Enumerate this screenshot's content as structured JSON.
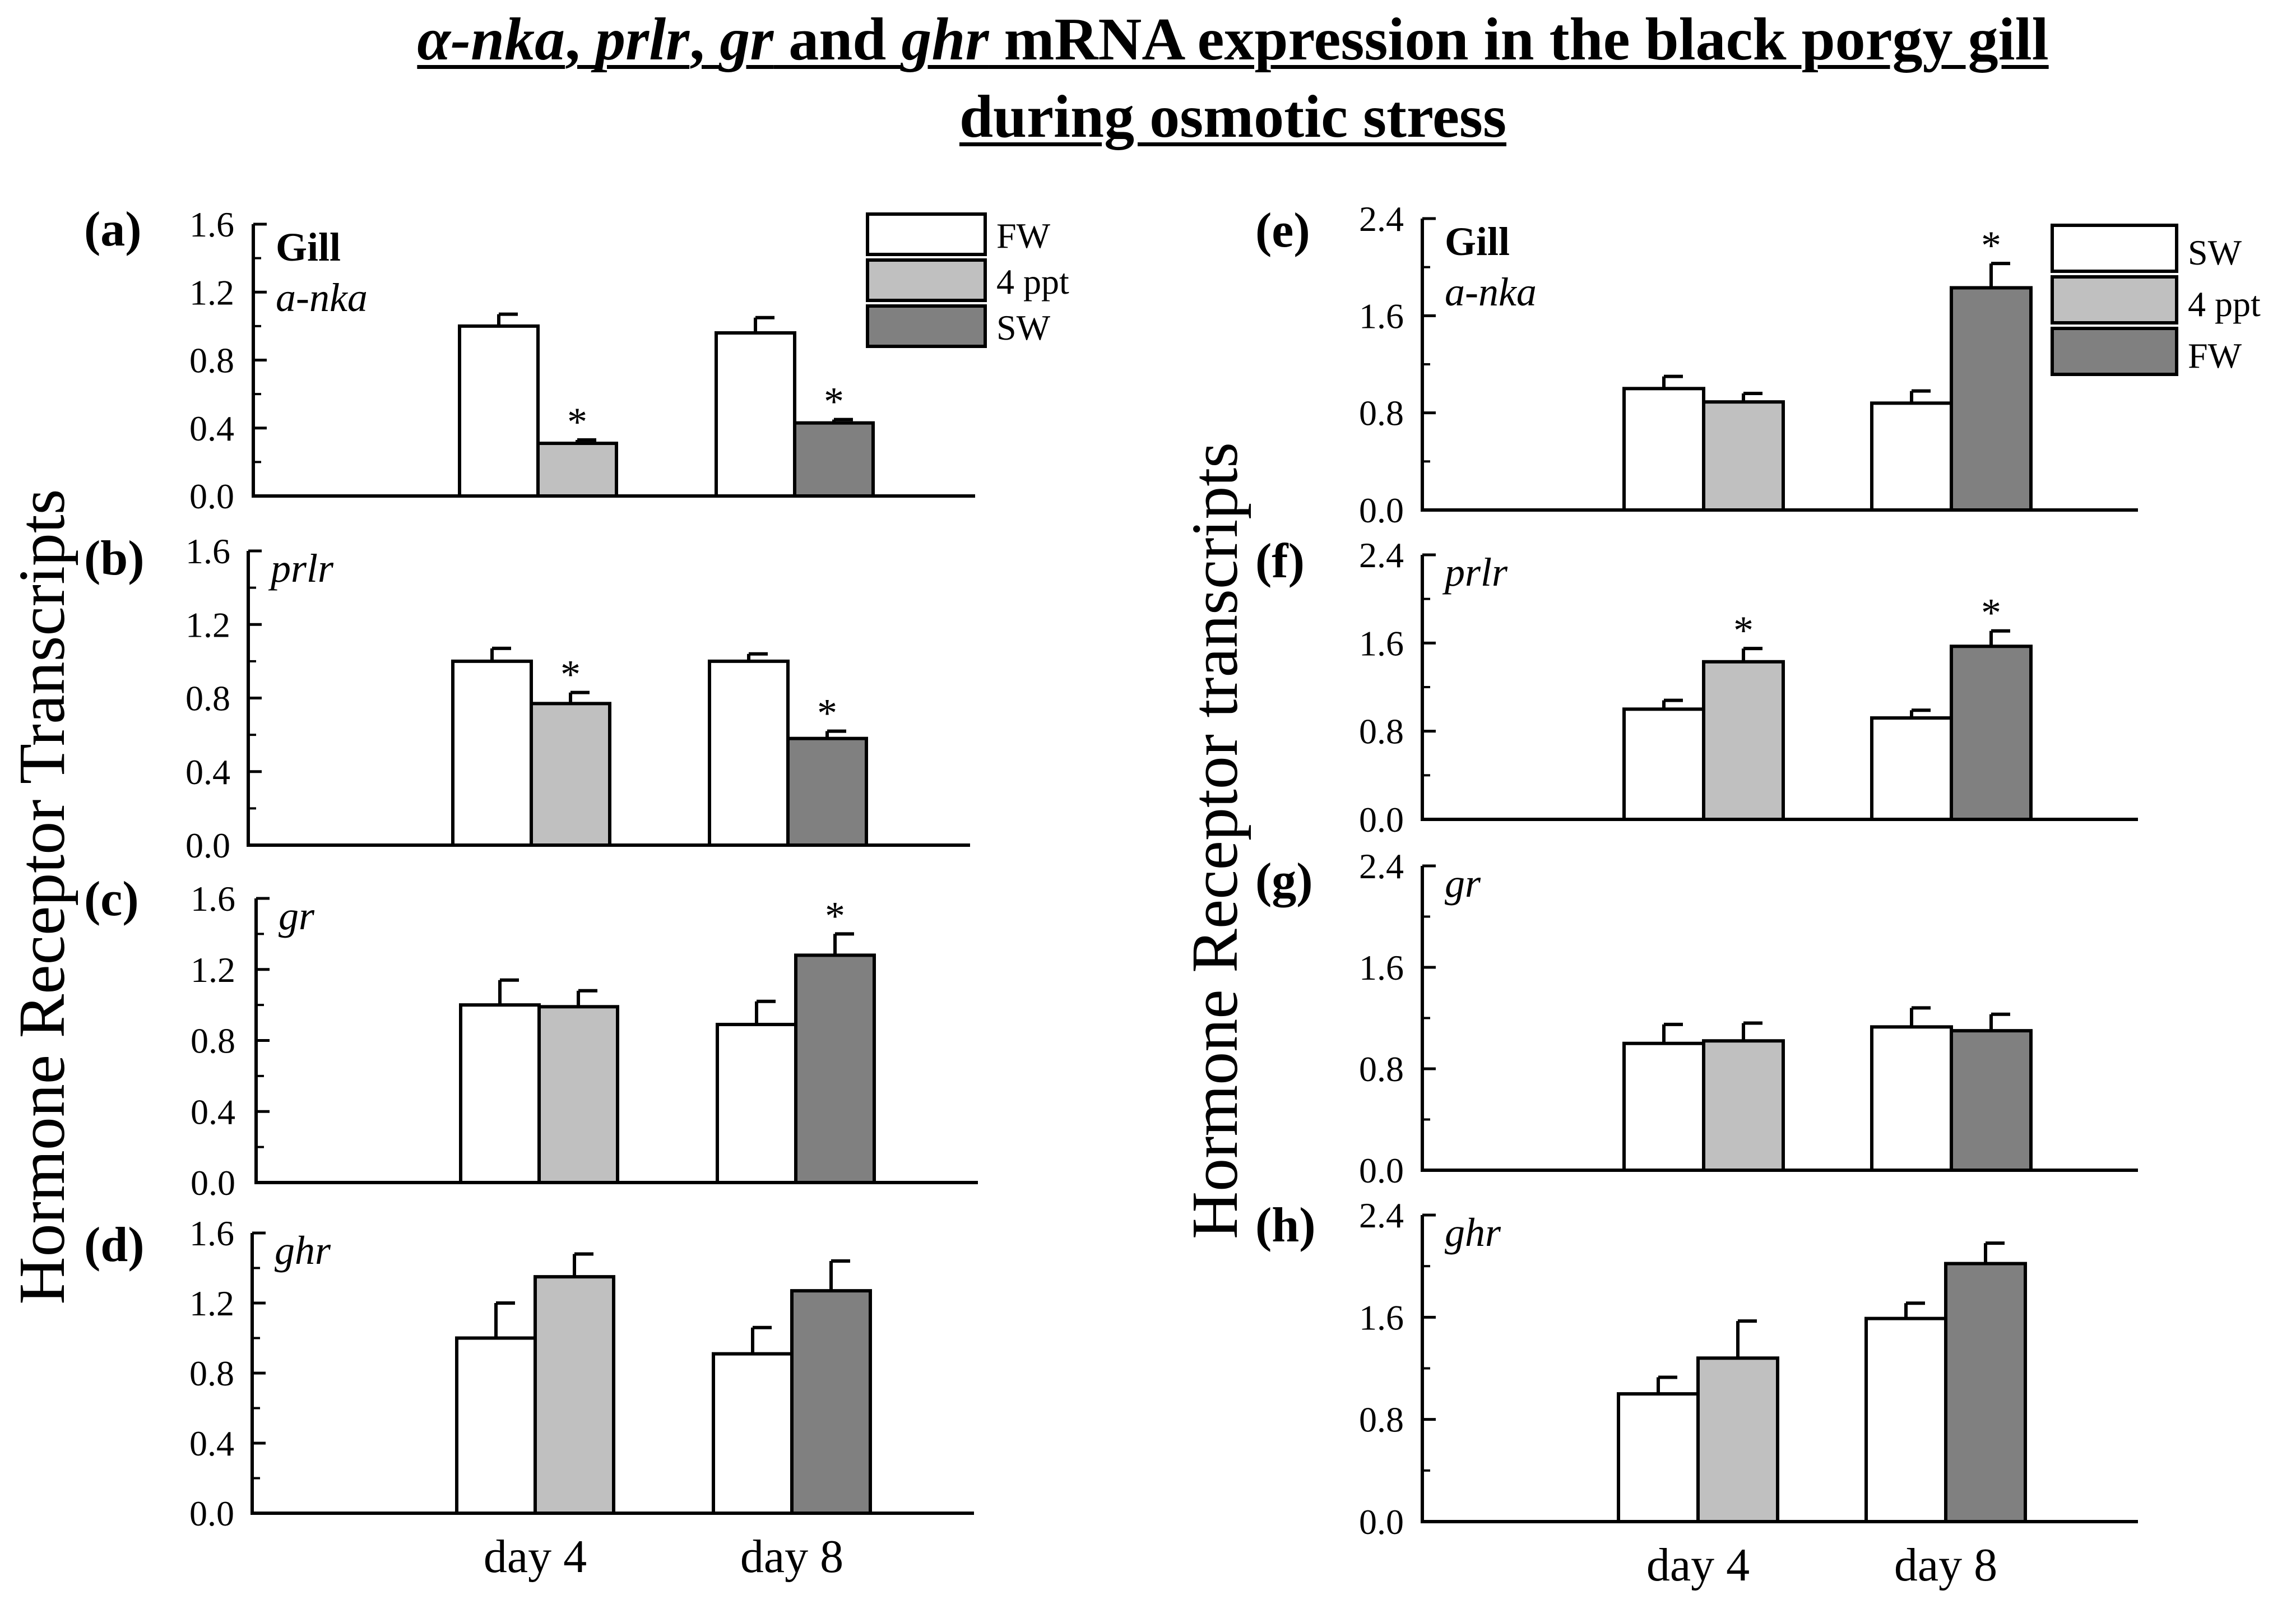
{
  "title_parts": [
    [
      [
        "α-nka",
        true
      ],
      [
        ", ",
        false
      ],
      [
        "prlr",
        true
      ],
      [
        ", ",
        false
      ],
      [
        "gr",
        true
      ],
      [
        " and ",
        false
      ],
      [
        "ghr",
        true
      ],
      [
        " mRNA expression in the black porgy gill",
        false
      ]
    ],
    [
      [
        "during osmotic stress",
        false
      ]
    ]
  ],
  "ylabel_left": "Hormone Receptor Transcripts",
  "ylabel_right": "Hormone Receptor transcripts",
  "colors": {
    "white": "#ffffff",
    "light": "#c0c0c0",
    "dark": "#808080",
    "stroke": "#000000"
  },
  "chart_data": [
    {
      "type": "bar",
      "panel": "(a)",
      "tissue": "Gill",
      "gene": "a-nka",
      "categories": [
        "day 4",
        "day 8"
      ],
      "show_xticklabels": false,
      "ylim": [
        0,
        1.6
      ],
      "yticks": [
        "0.0",
        "0.4",
        "0.8",
        "1.2",
        "1.6"
      ],
      "legend": [
        {
          "label": "FW",
          "color": "white"
        },
        {
          "label": "4 ppt",
          "color": "light"
        },
        {
          "label": "SW",
          "color": "dark"
        }
      ],
      "groups": [
        [
          {
            "series": "FW",
            "color": "white",
            "value": 1.0,
            "err": 0.07,
            "sig": ""
          },
          {
            "series": "4 ppt",
            "color": "light",
            "value": 0.31,
            "err": 0.02,
            "sig": "*"
          }
        ],
        [
          {
            "series": "FW",
            "color": "white",
            "value": 0.96,
            "err": 0.09,
            "sig": ""
          },
          {
            "series": "SW",
            "color": "dark",
            "value": 0.43,
            "err": 0.02,
            "sig": "*"
          }
        ]
      ]
    },
    {
      "type": "bar",
      "panel": "(b)",
      "tissue": "",
      "gene": "prlr",
      "categories": [
        "day 4",
        "day 8"
      ],
      "show_xticklabels": false,
      "ylim": [
        0,
        1.6
      ],
      "yticks": [
        "0.0",
        "0.4",
        "0.8",
        "1.2",
        "1.6"
      ],
      "legend": [],
      "groups": [
        [
          {
            "series": "FW",
            "color": "white",
            "value": 1.0,
            "err": 0.07,
            "sig": ""
          },
          {
            "series": "4 ppt",
            "color": "light",
            "value": 0.77,
            "err": 0.06,
            "sig": "*"
          }
        ],
        [
          {
            "series": "FW",
            "color": "white",
            "value": 1.0,
            "err": 0.04,
            "sig": ""
          },
          {
            "series": "SW",
            "color": "dark",
            "value": 0.58,
            "err": 0.04,
            "sig": "*"
          }
        ]
      ]
    },
    {
      "type": "bar",
      "panel": "(c)",
      "tissue": "",
      "gene": "gr",
      "categories": [
        "day 4",
        "day 8"
      ],
      "show_xticklabels": false,
      "ylim": [
        0,
        1.6
      ],
      "yticks": [
        "0.0",
        "0.4",
        "0.8",
        "1.2",
        "1.6"
      ],
      "legend": [],
      "groups": [
        [
          {
            "series": "FW",
            "color": "white",
            "value": 1.0,
            "err": 0.14,
            "sig": ""
          },
          {
            "series": "4 ppt",
            "color": "light",
            "value": 0.99,
            "err": 0.09,
            "sig": ""
          }
        ],
        [
          {
            "series": "FW",
            "color": "white",
            "value": 0.89,
            "err": 0.13,
            "sig": ""
          },
          {
            "series": "SW",
            "color": "dark",
            "value": 1.28,
            "err": 0.12,
            "sig": "*"
          }
        ]
      ]
    },
    {
      "type": "bar",
      "panel": "(d)",
      "tissue": "",
      "gene": "ghr",
      "categories": [
        "day 4",
        "day 8"
      ],
      "show_xticklabels": true,
      "ylim": [
        0,
        1.6
      ],
      "yticks": [
        "0.0",
        "0.4",
        "0.8",
        "1.2",
        "1.6"
      ],
      "legend": [],
      "groups": [
        [
          {
            "series": "FW",
            "color": "white",
            "value": 1.0,
            "err": 0.2,
            "sig": ""
          },
          {
            "series": "4 ppt",
            "color": "light",
            "value": 1.35,
            "err": 0.13,
            "sig": ""
          }
        ],
        [
          {
            "series": "FW",
            "color": "white",
            "value": 0.91,
            "err": 0.15,
            "sig": ""
          },
          {
            "series": "SW",
            "color": "dark",
            "value": 1.27,
            "err": 0.17,
            "sig": ""
          }
        ]
      ]
    },
    {
      "type": "bar",
      "panel": "(e)",
      "tissue": "Gill",
      "gene": "a-nka",
      "categories": [
        "day 4",
        "day 8"
      ],
      "show_xticklabels": false,
      "ylim": [
        0,
        2.4
      ],
      "yticks": [
        "0.0",
        "0.8",
        "1.6",
        "2.4"
      ],
      "legend": [
        {
          "label": "SW",
          "color": "white"
        },
        {
          "label": "4 ppt",
          "color": "light"
        },
        {
          "label": "FW",
          "color": "dark"
        }
      ],
      "groups": [
        [
          {
            "series": "SW",
            "color": "white",
            "value": 1.0,
            "err": 0.1,
            "sig": ""
          },
          {
            "series": "4 ppt",
            "color": "light",
            "value": 0.89,
            "err": 0.07,
            "sig": ""
          }
        ],
        [
          {
            "series": "SW",
            "color": "white",
            "value": 0.88,
            "err": 0.1,
            "sig": ""
          },
          {
            "series": "FW",
            "color": "dark",
            "value": 1.83,
            "err": 0.2,
            "sig": "*"
          }
        ]
      ]
    },
    {
      "type": "bar",
      "panel": "(f)",
      "tissue": "",
      "gene": "prlr",
      "categories": [
        "day 4",
        "day 8"
      ],
      "show_xticklabels": false,
      "ylim": [
        0,
        2.4
      ],
      "yticks": [
        "0.0",
        "0.8",
        "1.6",
        "2.4"
      ],
      "legend": [],
      "groups": [
        [
          {
            "series": "SW",
            "color": "white",
            "value": 1.0,
            "err": 0.08,
            "sig": ""
          },
          {
            "series": "4 ppt",
            "color": "light",
            "value": 1.43,
            "err": 0.12,
            "sig": "*"
          }
        ],
        [
          {
            "series": "SW",
            "color": "white",
            "value": 0.92,
            "err": 0.07,
            "sig": ""
          },
          {
            "series": "FW",
            "color": "dark",
            "value": 1.57,
            "err": 0.14,
            "sig": "*"
          }
        ]
      ]
    },
    {
      "type": "bar",
      "panel": "(g)",
      "tissue": "",
      "gene": "gr",
      "categories": [
        "day 4",
        "day 8"
      ],
      "show_xticklabels": false,
      "ylim": [
        0,
        2.4
      ],
      "yticks": [
        "0.0",
        "0.8",
        "1.6",
        "2.4"
      ],
      "legend": [],
      "groups": [
        [
          {
            "series": "SW",
            "color": "white",
            "value": 1.0,
            "err": 0.15,
            "sig": ""
          },
          {
            "series": "4 ppt",
            "color": "light",
            "value": 1.02,
            "err": 0.14,
            "sig": ""
          }
        ],
        [
          {
            "series": "SW",
            "color": "white",
            "value": 1.13,
            "err": 0.15,
            "sig": ""
          },
          {
            "series": "FW",
            "color": "dark",
            "value": 1.1,
            "err": 0.13,
            "sig": ""
          }
        ]
      ]
    },
    {
      "type": "bar",
      "panel": "(h)",
      "tissue": "",
      "gene": "ghr",
      "categories": [
        "day 4",
        "day 8"
      ],
      "show_xticklabels": true,
      "ylim": [
        0,
        2.4
      ],
      "yticks": [
        "0.0",
        "0.8",
        "1.6",
        "2.4"
      ],
      "legend": [],
      "groups": [
        [
          {
            "series": "SW",
            "color": "white",
            "value": 1.0,
            "err": 0.13,
            "sig": ""
          },
          {
            "series": "4 ppt",
            "color": "light",
            "value": 1.28,
            "err": 0.29,
            "sig": ""
          }
        ],
        [
          {
            "series": "SW",
            "color": "white",
            "value": 1.59,
            "err": 0.12,
            "sig": ""
          },
          {
            "series": "FW",
            "color": "dark",
            "value": 2.02,
            "err": 0.16,
            "sig": ""
          }
        ]
      ]
    }
  ]
}
